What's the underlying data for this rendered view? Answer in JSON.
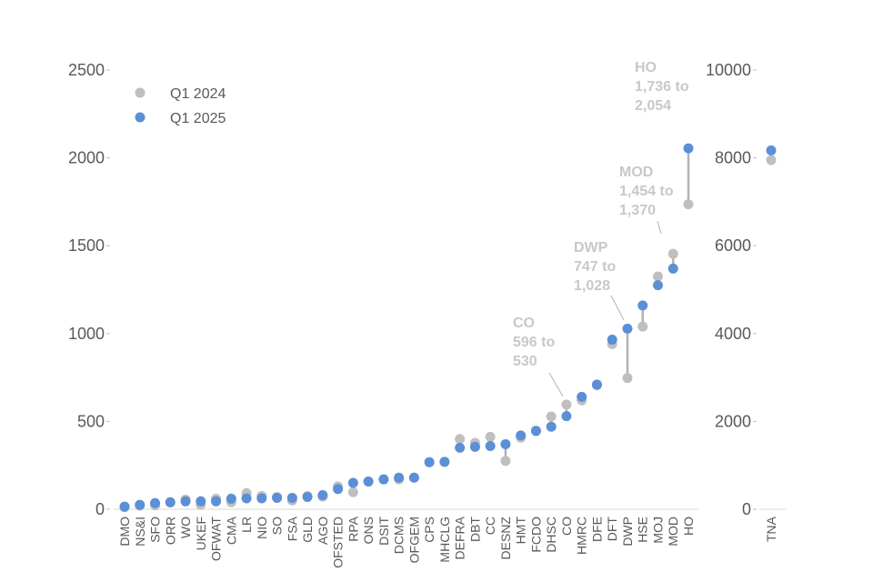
{
  "chart_data": {
    "type": "scatter",
    "subtype": "dumbbell",
    "legend": {
      "placement": "top-left",
      "entries": [
        {
          "name": "Q1 2024",
          "color": "#bfbfbf"
        },
        {
          "name": "Q1 2025",
          "color": "#5b8fd6"
        }
      ]
    },
    "colors": {
      "q2024": "#bfbfbf",
      "q2025": "#5b8fd6",
      "connector": "#b3b3b3",
      "annotation": "#c8c8c8"
    },
    "left_axis": {
      "ylim": [
        0,
        2500
      ],
      "ticks": [
        "0",
        "500",
        "1000",
        "1500",
        "2000",
        "2500"
      ]
    },
    "right_axis": {
      "ylim": [
        0,
        10000
      ],
      "ticks": [
        "0",
        "2000",
        "4000",
        "6000",
        "8000",
        "10000"
      ]
    },
    "categories": [
      "DMO",
      "NS&I",
      "SFO",
      "ORR",
      "WO",
      "UKEF",
      "OFWAT",
      "CMA",
      "LR",
      "NIO",
      "SO",
      "FSA",
      "GLD",
      "AGO",
      "OFSTED",
      "RPA",
      "ONS",
      "DSIT",
      "DCMS",
      "OFGEM",
      "CPS",
      "MHCLG",
      "DEFRA",
      "DBT",
      "CC",
      "DESNZ",
      "HMT",
      "FCDO",
      "DHSC",
      "CO",
      "HMRC",
      "DFE",
      "DFT",
      "DWP",
      "HSE",
      "MOJ",
      "MOD",
      "HO"
    ],
    "series": [
      {
        "name": "Q1 2024",
        "values": [
          12,
          20,
          22,
          38,
          55,
          25,
          60,
          40,
          92,
          75,
          70,
          50,
          75,
          72,
          130,
          97,
          158,
          170,
          170,
          180,
          268,
          270,
          400,
          378,
          412,
          275,
          408,
          448,
          528,
          596,
          620,
          705,
          940,
          747,
          1040,
          1325,
          1454,
          1736
        ]
      },
      {
        "name": "Q1 2025",
        "values": [
          15,
          25,
          35,
          40,
          45,
          45,
          45,
          60,
          62,
          62,
          65,
          65,
          70,
          80,
          115,
          150,
          158,
          170,
          180,
          180,
          268,
          270,
          350,
          355,
          360,
          370,
          420,
          445,
          470,
          530,
          640,
          710,
          965,
          1028,
          1160,
          1275,
          1370,
          2054
        ]
      }
    ],
    "secondary": {
      "categories": [
        "TNA"
      ],
      "series": [
        {
          "name": "Q1 2024",
          "values": [
            7950
          ]
        },
        {
          "name": "Q1 2025",
          "values": [
            8170
          ]
        }
      ]
    },
    "annotations": [
      {
        "category": "CO",
        "lines": [
          "CO",
          "596 to",
          "530"
        ]
      },
      {
        "category": "DWP",
        "lines": [
          "DWP",
          "747 to",
          "1,028"
        ]
      },
      {
        "category": "MOD",
        "lines": [
          "MOD",
          "1,454 to",
          "1,370"
        ]
      },
      {
        "category": "HO",
        "lines": [
          "HO",
          "1,736 to",
          "2,054"
        ]
      }
    ],
    "grid": false
  }
}
